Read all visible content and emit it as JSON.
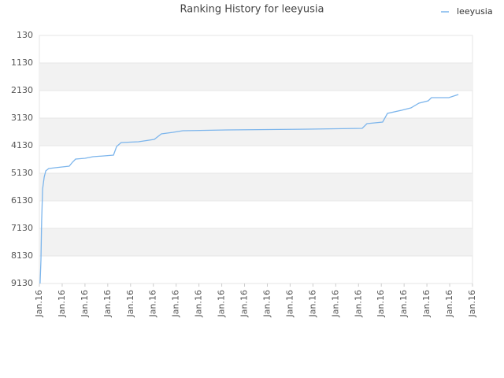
{
  "chart_data": {
    "type": "line",
    "title": "Ranking History for leeyusia",
    "series": [
      {
        "name": "leeyusia",
        "color": "#7cb5ec",
        "x": [
          0.03,
          0.07,
          0.1,
          0.14,
          0.21,
          0.28,
          0.41,
          0.69,
          1.31,
          1.45,
          1.59,
          2.0,
          2.35,
          2.83,
          3.25,
          3.39,
          3.59,
          4.35,
          5.04,
          5.35,
          5.87,
          6.29,
          8.22,
          11.81,
          14.16,
          14.37,
          15.06,
          15.27,
          15.89,
          16.3,
          16.65,
          17.06,
          17.2,
          17.96,
          18.38
        ],
        "values": [
          9130,
          8273,
          6844,
          5701,
          5273,
          5044,
          4959,
          4930,
          4873,
          4730,
          4616,
          4587,
          4530,
          4501,
          4473,
          4159,
          4016,
          3987,
          3901,
          3701,
          3644,
          3587,
          3559,
          3530,
          3501,
          3330,
          3273,
          2959,
          2844,
          2759,
          2587,
          2501,
          2387,
          2387,
          2273
        ]
      }
    ],
    "xlim": [
      0,
      19
    ],
    "xticks": [
      {
        "value": 0,
        "label": "Jan.16"
      },
      {
        "value": 1,
        "label": "Jan.16"
      },
      {
        "value": 2,
        "label": "Jan.16"
      },
      {
        "value": 3,
        "label": "Jan.16"
      },
      {
        "value": 4,
        "label": "Jan.16"
      },
      {
        "value": 5,
        "label": "Jan.16"
      },
      {
        "value": 6,
        "label": "Jan.16"
      },
      {
        "value": 7,
        "label": "Jan.16"
      },
      {
        "value": 8,
        "label": "Jan.16"
      },
      {
        "value": 9,
        "label": "Jan.16"
      },
      {
        "value": 10,
        "label": "Jan.16"
      },
      {
        "value": 11,
        "label": "Jan.16"
      },
      {
        "value": 12,
        "label": "Jan.16"
      },
      {
        "value": 13,
        "label": "Jan.16"
      },
      {
        "value": 14,
        "label": "Jan.16"
      },
      {
        "value": 15,
        "label": "Jan.16"
      },
      {
        "value": 16,
        "label": "Jan.16"
      },
      {
        "value": 17,
        "label": "Jan.16"
      },
      {
        "value": 18,
        "label": "Jan.16"
      },
      {
        "value": 19,
        "label": "Jan.16"
      }
    ],
    "ylim": [
      130,
      9130
    ],
    "y_inverted": true,
    "yticks": [
      130,
      1130,
      2130,
      3130,
      4130,
      5130,
      6130,
      7130,
      8130,
      9130
    ],
    "grid": true,
    "legend": "top-right"
  }
}
